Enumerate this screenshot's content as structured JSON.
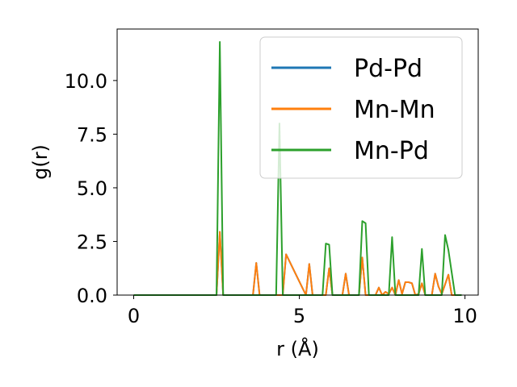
{
  "chart_data": {
    "type": "line",
    "xlabel": "r (Å)",
    "ylabel": "g(r)",
    "xlim": [
      -0.5,
      10.4
    ],
    "ylim": [
      0,
      12.4
    ],
    "xticks": [
      0,
      5,
      10
    ],
    "xtick_labels": [
      "0",
      "5",
      "10"
    ],
    "yticks": [
      0.0,
      2.5,
      5.0,
      7.5,
      10.0
    ],
    "ytick_labels": [
      "0.0",
      "2.5",
      "5.0",
      "7.5",
      "10.0"
    ],
    "grid": false,
    "legend_position": "top-right",
    "series": [
      {
        "name": "Pd-Pd",
        "color": "#1f77b4",
        "x": [
          0,
          2.5,
          2.6,
          2.7,
          3.6,
          3.7,
          3.8,
          4.4,
          4.5,
          4.6,
          5.2,
          5.3,
          5.4,
          5.8,
          5.9,
          6.0,
          6.3,
          6.4,
          6.5,
          6.8,
          6.9,
          7.0,
          7.3,
          7.4,
          7.5,
          7.6,
          7.7,
          7.8,
          7.9,
          8.0,
          8.1,
          8.2,
          8.3,
          8.4,
          8.5,
          8.6,
          8.7,
          8.8,
          9.0,
          9.1,
          9.2,
          9.3,
          9.4,
          9.5,
          9.6,
          9.8,
          9.9
        ],
        "y": [
          0,
          0,
          2.95,
          0,
          0,
          1.5,
          0,
          0,
          0,
          1.9,
          0,
          1.45,
          0,
          0,
          1.25,
          0,
          0,
          1.0,
          0,
          0,
          1.75,
          0,
          0,
          0.35,
          0,
          0.15,
          0.05,
          0.35,
          0,
          0.7,
          0.05,
          0.6,
          0.6,
          0.55,
          0,
          0.05,
          0.55,
          0,
          0,
          1.0,
          0.4,
          0.05,
          0.5,
          0.95,
          0,
          0,
          0
        ]
      },
      {
        "name": "Mn-Mn",
        "color": "#ff7f0e",
        "x": [
          0,
          2.5,
          2.6,
          2.7,
          3.6,
          3.7,
          3.8,
          4.4,
          4.5,
          4.6,
          5.2,
          5.3,
          5.4,
          5.8,
          5.9,
          6.0,
          6.3,
          6.4,
          6.5,
          6.8,
          6.9,
          7.0,
          7.3,
          7.4,
          7.5,
          7.6,
          7.7,
          7.8,
          7.9,
          8.0,
          8.1,
          8.2,
          8.3,
          8.4,
          8.5,
          8.6,
          8.7,
          8.8,
          9.0,
          9.1,
          9.2,
          9.3,
          9.4,
          9.5,
          9.6,
          9.8,
          9.9
        ],
        "y": [
          0,
          0,
          2.95,
          0,
          0,
          1.5,
          0,
          0,
          0,
          1.9,
          0,
          1.45,
          0,
          0,
          1.25,
          0,
          0,
          1.0,
          0,
          0,
          1.75,
          0,
          0,
          0.35,
          0,
          0.15,
          0.05,
          0.35,
          0,
          0.7,
          0.05,
          0.6,
          0.6,
          0.55,
          0,
          0.05,
          0.55,
          0,
          0,
          1.0,
          0.4,
          0.05,
          0.5,
          0.95,
          0,
          0,
          0
        ]
      },
      {
        "name": "Mn-Pd",
        "color": "#2ca02c",
        "x": [
          0,
          2.5,
          2.6,
          2.7,
          4.3,
          4.4,
          4.5,
          4.6,
          5.7,
          5.8,
          5.9,
          6.0,
          6.8,
          6.9,
          7.0,
          7.1,
          7.7,
          7.8,
          7.9,
          8.6,
          8.7,
          8.8,
          9.3,
          9.4,
          9.5,
          9.6,
          9.7,
          9.9
        ],
        "y": [
          0,
          0,
          11.8,
          0,
          0,
          8.0,
          0,
          0,
          0,
          2.4,
          2.35,
          0,
          0,
          3.45,
          3.35,
          0,
          0,
          2.7,
          0,
          0,
          2.15,
          0,
          0,
          2.8,
          2.1,
          1.05,
          0,
          0
        ]
      }
    ]
  }
}
